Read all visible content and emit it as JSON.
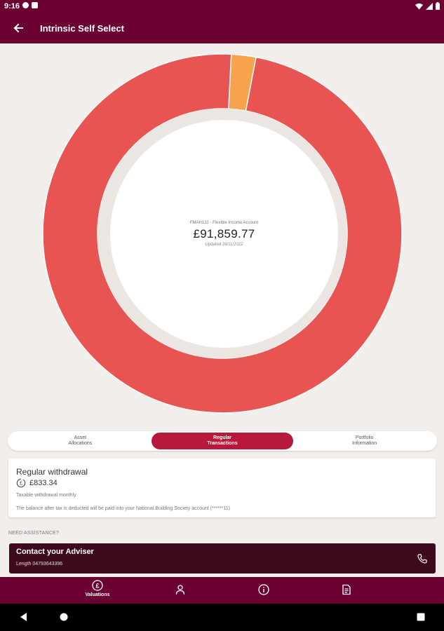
{
  "status_bar": {
    "time": "9:16"
  },
  "app_bar": {
    "title": "Intrinsic Self Select"
  },
  "chart_data": {
    "type": "pie",
    "variant": "donut",
    "slices": [
      {
        "value": 97.8,
        "color": "#e85452"
      },
      {
        "value": 2.2,
        "color": "#f7a34d"
      }
    ],
    "center": {
      "account": "FMAH132 - Flexible Income Account",
      "value": "£91,859.77",
      "updated": "Updated 28/11/2022"
    }
  },
  "tabs": [
    {
      "line1": "Asset",
      "line2": "Allocations",
      "active": false
    },
    {
      "line1": "Regular",
      "line2": "Transactions",
      "active": true
    },
    {
      "line1": "Portfolio",
      "line2": "Information",
      "active": false
    }
  ],
  "withdrawal_card": {
    "heading": "Regular withdrawal",
    "amount": "£833.34",
    "frequency": "Taxable withdrawal monthly",
    "note": "The balance after tax is deducted will be paid into your National Building Society account (******11)"
  },
  "assistance": {
    "label": "NEED ASSISTANCE?",
    "contact_title": "Contact your Adviser",
    "contact_phone": "Length 04793643396"
  },
  "bottom_nav": {
    "valuations_label": "Valuations",
    "icons": [
      "pound-icon",
      "person-icon",
      "info-icon",
      "document-icon"
    ]
  },
  "colors": {
    "brand": "#6b0033",
    "active_tab": "#b8183a",
    "contact_bg": "#3e0a1e",
    "background": "#f1eeec"
  }
}
